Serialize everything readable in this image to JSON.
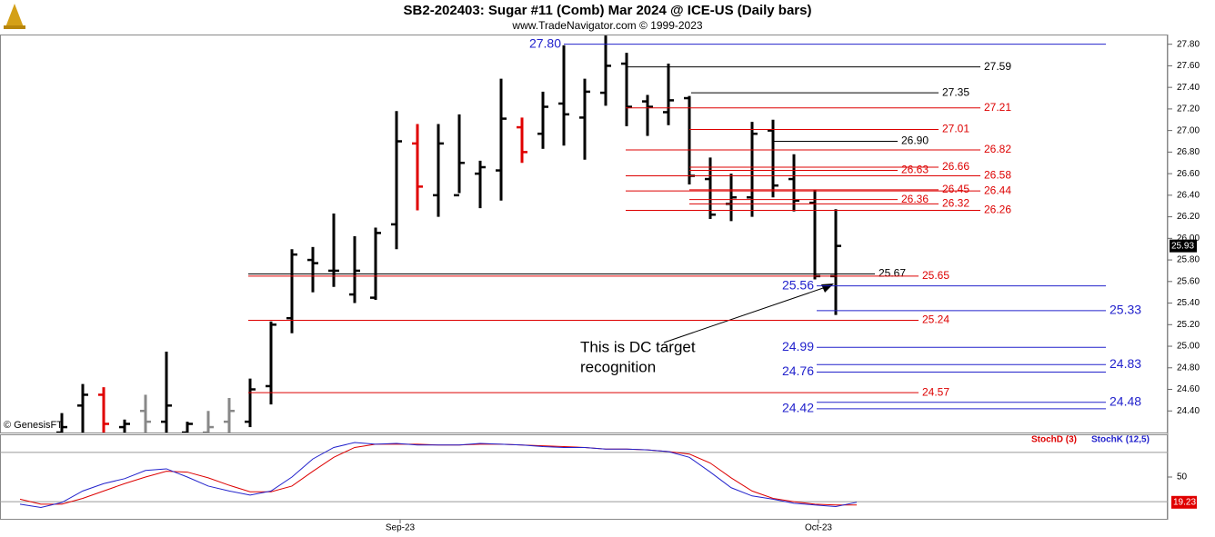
{
  "chart_data": {
    "type": "ohlc",
    "title": "SB2-202403:  Sugar #11 (Comb) Mar 2024 @ ICE-US  (Daily bars)",
    "subtitle": "www.TradeNavigator.com © 1999-2023",
    "source": "© GenesisFT",
    "annotation": [
      "This is DC target",
      "recognition"
    ],
    "x_labels": [
      "Sep-23",
      "Oct-23"
    ],
    "ylim": [
      24.2,
      27.89
    ],
    "yticks": [
      {
        "value": 24.4,
        "label": "24.40"
      },
      {
        "value": 24.6,
        "label": "24.60"
      },
      {
        "value": 24.8,
        "label": "24.80"
      },
      {
        "value": 25,
        "label": "25.00"
      },
      {
        "value": 25.2,
        "label": "25.20"
      },
      {
        "value": 25.4,
        "label": "25.40"
      },
      {
        "value": 25.6,
        "label": "25.60"
      },
      {
        "value": 25.8,
        "label": "25.80"
      },
      {
        "value": 26,
        "label": "26.00"
      },
      {
        "value": 26.2,
        "label": "26.20"
      },
      {
        "value": 26.4,
        "label": "26.40"
      },
      {
        "value": 26.6,
        "label": "26.60"
      },
      {
        "value": 26.8,
        "label": "26.80"
      },
      {
        "value": 27,
        "label": "27.00"
      },
      {
        "value": 27.2,
        "label": "27.20"
      },
      {
        "value": 27.4,
        "label": "27.40"
      },
      {
        "value": 27.6,
        "label": "27.60"
      },
      {
        "value": 27.8,
        "label": "27.80"
      }
    ],
    "bars": {
      "open": [
        24.2,
        24.45,
        24.55,
        24.25,
        24.4,
        24.3,
        24.2,
        24.2,
        24.3,
        24.3,
        24.63,
        25.26,
        25.8,
        25.7,
        25.48,
        25.45,
        26.13,
        26.88,
        26.4,
        26.4,
        26.6,
        26.63,
        27.03,
        26.97,
        27.25,
        27.12,
        27.35,
        27.62,
        27.27,
        27.17,
        27.3,
        26.55,
        26.32,
        26.38,
        27.0,
        26.55,
        26.33,
        25.65
      ],
      "high": [
        24.38,
        24.65,
        24.62,
        24.32,
        24.55,
        24.95,
        24.3,
        24.4,
        24.52,
        24.7,
        25.23,
        25.9,
        25.92,
        26.23,
        26.02,
        26.1,
        27.18,
        27.06,
        27.06,
        27.15,
        26.72,
        27.48,
        27.12,
        27.36,
        27.79,
        27.48,
        27.88,
        27.72,
        27.33,
        27.62,
        27.32,
        26.75,
        26.6,
        27.08,
        27.1,
        26.78,
        26.45,
        26.27
      ],
      "low": [
        24.1,
        24.1,
        24.1,
        24.1,
        24.1,
        24.1,
        24.1,
        24.1,
        24.1,
        24.25,
        24.46,
        25.12,
        25.5,
        25.55,
        25.4,
        25.43,
        25.9,
        26.26,
        26.2,
        26.42,
        26.28,
        26.35,
        26.7,
        26.83,
        26.86,
        26.73,
        27.23,
        27.04,
        26.95,
        27.05,
        26.5,
        26.18,
        26.16,
        26.2,
        26.38,
        26.25,
        25.62,
        25.29
      ],
      "close": [
        24.25,
        24.55,
        24.28,
        24.28,
        24.3,
        24.45,
        24.28,
        24.25,
        24.4,
        24.6,
        25.2,
        25.85,
        25.77,
        25.7,
        25.7,
        26.05,
        26.9,
        26.48,
        26.88,
        26.7,
        26.66,
        27.11,
        26.8,
        27.22,
        27.15,
        27.36,
        27.6,
        27.22,
        27.22,
        27.28,
        26.58,
        26.22,
        26.38,
        26.97,
        26.49,
        26.35,
        25.65,
        25.93
      ],
      "colors": [
        "#000",
        "#000",
        "#e00000",
        "#000",
        "#888",
        "#000",
        "#000",
        "#888",
        "#888",
        "#000",
        "#000",
        "#000",
        "#000",
        "#000",
        "#000",
        "#000",
        "#000",
        "#e00000",
        "#000",
        "#000",
        "#000",
        "#000",
        "#e00000",
        "#000",
        "#000",
        "#000",
        "#000",
        "#000",
        "#000",
        "#000",
        "#000",
        "#000",
        "#000",
        "#000",
        "#000",
        "#000",
        "#000",
        "#000"
      ]
    },
    "last_price_label": "25.93",
    "levels": [
      {
        "value": 27.8,
        "label": "27.80",
        "color": "#2222cc",
        "side": "left"
      },
      {
        "value": 27.59,
        "label": "27.59",
        "color": "#000000",
        "side": "right"
      },
      {
        "value": 27.35,
        "label": "27.35",
        "color": "#000000",
        "side": "right"
      },
      {
        "value": 27.21,
        "label": "27.21",
        "color": "#dd0000",
        "side": "right"
      },
      {
        "value": 27.01,
        "label": "27.01",
        "color": "#dd0000",
        "side": "right"
      },
      {
        "value": 26.9,
        "label": "26.90",
        "color": "#000000",
        "side": "right"
      },
      {
        "value": 26.82,
        "label": "26.82",
        "color": "#dd0000",
        "side": "right"
      },
      {
        "value": 26.66,
        "label": "26.66",
        "color": "#dd0000",
        "side": "right"
      },
      {
        "value": 26.63,
        "label": "26.63",
        "color": "#dd0000",
        "side": "right"
      },
      {
        "value": 26.58,
        "label": "26.58",
        "color": "#dd0000",
        "side": "right"
      },
      {
        "value": 26.45,
        "label": "26.45",
        "color": "#dd0000",
        "side": "right"
      },
      {
        "value": 26.44,
        "label": "26.44",
        "color": "#dd0000",
        "side": "right"
      },
      {
        "value": 26.36,
        "label": "26.36",
        "color": "#dd0000",
        "side": "right"
      },
      {
        "value": 26.32,
        "label": "26.32",
        "color": "#dd0000",
        "side": "right"
      },
      {
        "value": 26.26,
        "label": "26.26",
        "color": "#dd0000",
        "side": "right"
      },
      {
        "value": 25.67,
        "label": "25.67",
        "color": "#000000",
        "side": "right"
      },
      {
        "value": 25.65,
        "label": "25.65",
        "color": "#dd0000",
        "side": "right"
      },
      {
        "value": 25.56,
        "label": "25.56",
        "color": "#2222cc",
        "side": "left"
      },
      {
        "value": 25.33,
        "label": "25.33",
        "color": "#2222cc",
        "side": "right"
      },
      {
        "value": 25.24,
        "label": "25.24",
        "color": "#dd0000",
        "side": "right"
      },
      {
        "value": 24.99,
        "label": "24.99",
        "color": "#2222cc",
        "side": "left"
      },
      {
        "value": 24.83,
        "label": "24.83",
        "color": "#2222cc",
        "side": "right"
      },
      {
        "value": 24.76,
        "label": "24.76",
        "color": "#2222cc",
        "side": "left"
      },
      {
        "value": 24.57,
        "label": "24.57",
        "color": "#dd0000",
        "side": "right"
      },
      {
        "value": 24.48,
        "label": "24.48",
        "color": "#2222cc",
        "side": "right"
      },
      {
        "value": 24.42,
        "label": "24.42",
        "color": "#2222cc",
        "side": "left"
      }
    ],
    "stoch": {
      "ylim": [
        -2,
        102
      ],
      "yticks": [
        50
      ],
      "guides": [
        20,
        80
      ],
      "series": [
        {
          "name": "StochD (3)",
          "color": "#dd0000",
          "values": [
            23,
            17,
            17,
            24,
            33,
            42,
            50,
            57,
            56,
            49,
            40,
            32,
            32,
            39,
            57,
            74,
            86,
            90,
            90,
            90,
            89,
            89,
            90,
            90,
            89,
            88,
            87,
            86,
            84,
            84,
            83,
            81,
            78,
            67,
            49,
            33,
            24,
            20,
            17,
            16,
            16
          ]
        },
        {
          "name": "StochK (12,5)",
          "color": "#2222cc",
          "values": [
            17,
            13,
            19,
            33,
            42,
            48,
            58,
            60,
            50,
            39,
            33,
            28,
            33,
            50,
            72,
            86,
            92,
            90,
            91,
            89,
            89,
            89,
            91,
            90,
            89,
            87,
            86,
            86,
            84,
            84,
            83,
            81,
            74,
            56,
            37,
            27,
            23,
            18,
            16,
            14,
            19.23
          ]
        }
      ],
      "last_label": "19.23"
    }
  }
}
